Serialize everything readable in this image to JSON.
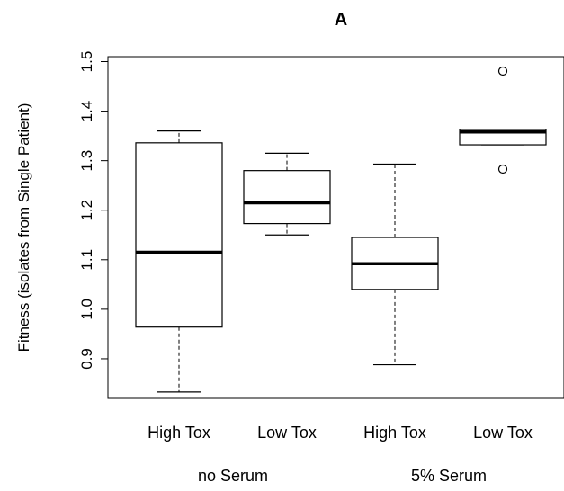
{
  "chart_data": {
    "type": "boxplot",
    "title": "A",
    "ylabel": "Fitness (isolates from Single Patient)",
    "xlabel": "",
    "ylim": [
      0.82,
      1.51
    ],
    "yticks": [
      "0.9",
      "1.0",
      "1.1",
      "1.2",
      "1.3",
      "1.4",
      "1.5"
    ],
    "grid": false,
    "categories": [
      "High Tox",
      "Low Tox",
      "High Tox",
      "Low Tox"
    ],
    "groups": [
      {
        "label": "no Serum",
        "categories": [
          0,
          1
        ]
      },
      {
        "label": "5% Serum",
        "categories": [
          2,
          3
        ]
      }
    ],
    "boxes": [
      {
        "category": "High Tox",
        "group": "no Serum",
        "whisker_low": 0.833,
        "q1": 0.964,
        "median": 1.115,
        "q3": 1.336,
        "whisker_high": 1.36,
        "outliers": []
      },
      {
        "category": "Low Tox",
        "group": "no Serum",
        "whisker_low": 1.15,
        "q1": 1.173,
        "median": 1.215,
        "q3": 1.28,
        "whisker_high": 1.315,
        "outliers": []
      },
      {
        "category": "High Tox",
        "group": "5% Serum",
        "whisker_low": 0.888,
        "q1": 1.04,
        "median": 1.092,
        "q3": 1.145,
        "whisker_high": 1.293,
        "outliers": []
      },
      {
        "category": "Low Tox",
        "group": "5% Serum",
        "whisker_low": 1.332,
        "q1": 1.332,
        "median": 1.358,
        "q3": 1.363,
        "whisker_high": 1.363,
        "outliers": [
          1.283,
          1.481
        ]
      }
    ]
  }
}
